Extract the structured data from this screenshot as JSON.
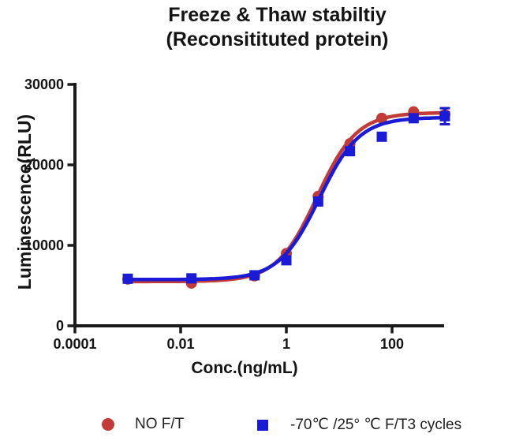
{
  "title": {
    "line1": "Freeze & Thaw stabiltiy",
    "line2": "(Reconsitituted protein)"
  },
  "chart_data": {
    "type": "line",
    "x_scale": "log",
    "title": "Freeze & Thaw stabiltiy (Reconsitituted protein)",
    "xlabel": "Conc.(ng/mL)",
    "ylabel": "Luminescence(RLU)",
    "xlim": [
      0.0001,
      1000
    ],
    "ylim": [
      0,
      30000
    ],
    "grid": false,
    "legend_position": "bottom",
    "axis_color": "#1a1a1a",
    "text_color": "#141414",
    "x_ticks": [
      {
        "value": 0.0001,
        "label": "0.0001"
      },
      {
        "value": 0.01,
        "label": "0.01"
      },
      {
        "value": 1,
        "label": "1"
      },
      {
        "value": 100,
        "label": "100"
      }
    ],
    "y_ticks": [
      {
        "value": 0,
        "label": "0"
      },
      {
        "value": 10000,
        "label": "10000"
      },
      {
        "value": 20000,
        "label": "20000"
      },
      {
        "value": 30000,
        "label": "30000"
      }
    ],
    "x": [
      0.001,
      0.016,
      0.25,
      1,
      4,
      16,
      64,
      256,
      1000
    ],
    "series": [
      {
        "name": "NO F/T",
        "marker": "circle",
        "color": "#c23b36",
        "values": [
          5800,
          5300,
          6200,
          9000,
          16100,
          22650,
          25800,
          26600,
          26250
        ],
        "errors": [
          null,
          null,
          null,
          null,
          null,
          null,
          null,
          null,
          null
        ],
        "fit": {
          "bottom": 5500,
          "top": 26500,
          "ec50": 3.8,
          "hill": 1.15
        },
        "curve_range": [
          0.001,
          1150
        ]
      },
      {
        "name": "-70℃ /25° ℃ F/T3 cycles",
        "marker": "square",
        "color": "#1b1bd6",
        "values": [
          5850,
          5900,
          6280,
          8150,
          15450,
          21700,
          23500,
          25800,
          26050
        ],
        "errors": [
          null,
          null,
          null,
          null,
          null,
          null,
          null,
          null,
          1000
        ],
        "fit": {
          "bottom": 5750,
          "top": 25900,
          "ec50": 4.2,
          "hill": 1.15
        },
        "curve_range": [
          0.001,
          1000
        ]
      }
    ]
  }
}
